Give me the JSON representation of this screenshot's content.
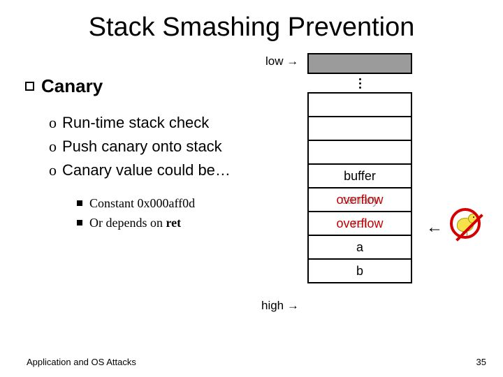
{
  "title": "Stack Smashing Prevention",
  "section": "Canary",
  "bullets": {
    "b1": "Run-time stack check",
    "b2": "Push canary onto stack",
    "b3": "Canary value could be…"
  },
  "sub": {
    "s1a": "Constant ",
    "s1b": "0x000aff0d",
    "s2a": "Or depends on ",
    "s2b": "ret"
  },
  "stack": {
    "low": "low",
    "high": "high",
    "buffer": "buffer",
    "canary_under": "canary",
    "overflow_top": "overflow",
    "ret_under": "ret",
    "overflow_bot": "overflow",
    "a": "a",
    "b": "b",
    "arrow": "→",
    "arrow_left": "←"
  },
  "footer": "Application and OS Attacks",
  "page": "35",
  "colors": {
    "red": "#c00000",
    "gray": "#9b9b9b"
  }
}
